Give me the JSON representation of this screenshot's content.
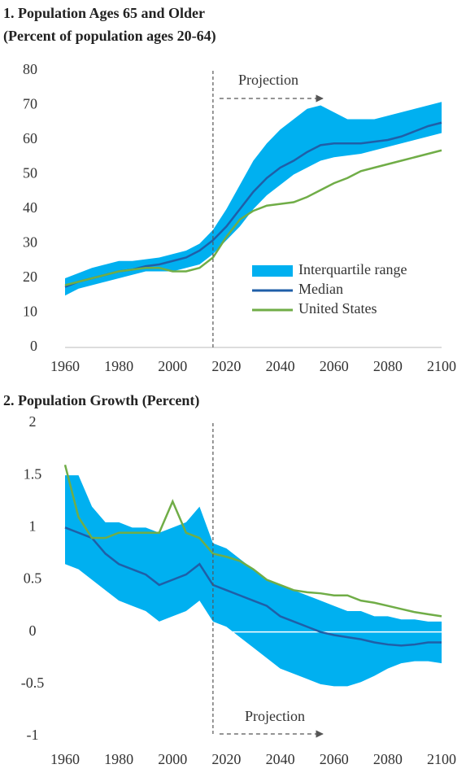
{
  "chart_data": [
    {
      "type": "line",
      "title": "1. Population  Ages 65 and Older",
      "subtitle": "(Percent of population  ages 20-64)",
      "annotation": "Projection",
      "projection_start": 2015,
      "x": [
        1960,
        1965,
        1970,
        1975,
        1980,
        1985,
        1990,
        1995,
        2000,
        2005,
        2010,
        2015,
        2020,
        2025,
        2030,
        2035,
        2040,
        2045,
        2050,
        2055,
        2060,
        2065,
        2070,
        2075,
        2080,
        2085,
        2090,
        2095,
        2100
      ],
      "xlim": [
        1960,
        2100
      ],
      "xticks": [
        1960,
        1980,
        2000,
        2020,
        2040,
        2060,
        2080,
        2100
      ],
      "ylim": [
        0,
        80
      ],
      "yticks": [
        0,
        10,
        20,
        30,
        40,
        50,
        60,
        70,
        80
      ],
      "legend": "right",
      "series": [
        {
          "name": "Interquartile range",
          "kind": "band",
          "color": "#00b0f0",
          "lower": [
            15,
            17,
            18,
            19,
            20,
            21,
            22,
            22,
            22,
            23,
            24,
            27,
            31,
            35,
            40,
            44,
            47,
            50,
            52,
            54,
            55,
            55.5,
            56,
            57,
            58,
            59,
            60,
            61,
            62
          ],
          "upper": [
            20,
            21.5,
            23,
            24,
            25,
            25,
            25.5,
            26,
            27,
            28,
            30,
            34,
            40,
            47,
            54,
            59,
            63,
            66,
            69,
            70,
            68,
            66,
            66,
            66,
            67,
            68,
            69,
            70,
            71
          ]
        },
        {
          "name": "Median",
          "color": "#1f5fa8",
          "values": [
            17.5,
            19,
            20,
            21,
            22,
            22.5,
            23.5,
            24,
            25,
            26,
            28,
            31,
            35,
            40,
            45,
            49,
            52,
            54,
            56.5,
            58.5,
            59,
            59,
            59,
            59.5,
            60,
            61,
            62.5,
            64,
            65
          ]
        },
        {
          "name": "United States",
          "color": "#70ad47",
          "values": [
            18,
            19,
            20,
            21,
            22,
            22.5,
            23,
            23,
            22,
            22,
            23,
            26,
            32,
            37,
            39.5,
            41,
            41.5,
            42,
            43.5,
            45.5,
            47.5,
            49,
            51,
            52,
            53,
            54,
            55,
            56,
            57
          ]
        }
      ]
    },
    {
      "type": "line",
      "title": "2. Population  Growth  (Percent)",
      "annotation": "Projection",
      "projection_start": 2015,
      "x": [
        1960,
        1965,
        1970,
        1975,
        1980,
        1985,
        1990,
        1995,
        2000,
        2005,
        2010,
        2015,
        2020,
        2025,
        2030,
        2035,
        2040,
        2045,
        2050,
        2055,
        2060,
        2065,
        2070,
        2075,
        2080,
        2085,
        2090,
        2095,
        2100
      ],
      "xlim": [
        1960,
        2100
      ],
      "xticks": [
        1960,
        1980,
        2000,
        2020,
        2040,
        2060,
        2080,
        2100
      ],
      "ylim": [
        -1,
        2
      ],
      "yticks": [
        -1,
        -0.5,
        0,
        0.5,
        1,
        1.5,
        2
      ],
      "zero_line": 0,
      "series": [
        {
          "kind": "band",
          "color": "#00b0f0",
          "lower": [
            0.65,
            0.6,
            0.5,
            0.4,
            0.3,
            0.25,
            0.2,
            0.1,
            0.15,
            0.2,
            0.3,
            0.1,
            0.05,
            -0.05,
            -0.15,
            -0.25,
            -0.35,
            -0.4,
            -0.45,
            -0.5,
            -0.52,
            -0.52,
            -0.48,
            -0.42,
            -0.35,
            -0.3,
            -0.28,
            -0.28,
            -0.3
          ],
          "upper": [
            1.5,
            1.5,
            1.2,
            1.05,
            1.05,
            1.0,
            1.0,
            0.95,
            1.0,
            1.05,
            1.2,
            0.85,
            0.8,
            0.7,
            0.6,
            0.5,
            0.45,
            0.4,
            0.35,
            0.3,
            0.25,
            0.2,
            0.2,
            0.15,
            0.15,
            0.12,
            0.12,
            0.1,
            0.1
          ]
        },
        {
          "color": "#1f5fa8",
          "values": [
            1.0,
            0.95,
            0.9,
            0.75,
            0.65,
            0.6,
            0.55,
            0.45,
            0.5,
            0.55,
            0.65,
            0.45,
            0.4,
            0.35,
            0.3,
            0.25,
            0.15,
            0.1,
            0.05,
            0.0,
            -0.03,
            -0.05,
            -0.07,
            -0.1,
            -0.12,
            -0.13,
            -0.12,
            -0.1,
            -0.1
          ]
        },
        {
          "color": "#70ad47",
          "values": [
            1.6,
            1.1,
            0.9,
            0.9,
            0.95,
            0.95,
            0.95,
            0.95,
            1.25,
            0.95,
            0.9,
            0.75,
            0.72,
            0.68,
            0.6,
            0.5,
            0.45,
            0.4,
            0.38,
            0.37,
            0.35,
            0.35,
            0.3,
            0.28,
            0.25,
            0.22,
            0.19,
            0.17,
            0.15
          ]
        }
      ]
    }
  ]
}
